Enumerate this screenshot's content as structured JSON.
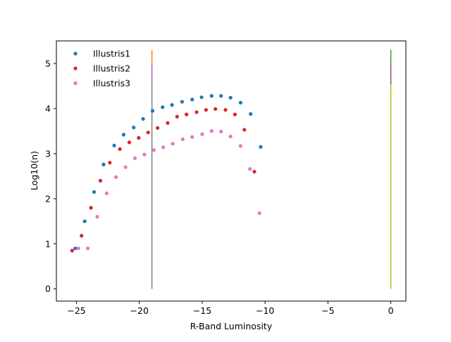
{
  "chart_data": {
    "type": "scatter",
    "title": "",
    "xlabel": "R-Band Luminosity",
    "ylabel": "Log10(n)",
    "xlim": [
      -26.6,
      1.2
    ],
    "ylim": [
      -0.27,
      5.5
    ],
    "xticks": [
      -25,
      -20,
      -15,
      -10,
      -5,
      0
    ],
    "xtick_labels": [
      "−25",
      "−20",
      "−15",
      "−10",
      "−5",
      "0"
    ],
    "yticks": [
      0,
      1,
      2,
      3,
      4,
      5
    ],
    "ytick_labels": [
      "0",
      "1",
      "2",
      "3",
      "4",
      "5"
    ],
    "grid": false,
    "legend_position": "top-left",
    "series": [
      {
        "name": "Illustris1",
        "color": "#1f77b4",
        "points": [
          [
            -25.1,
            0.9
          ],
          [
            -24.35,
            1.5
          ],
          [
            -23.6,
            2.15
          ],
          [
            -22.85,
            2.76
          ],
          [
            -22.0,
            3.18
          ],
          [
            -21.25,
            3.42
          ],
          [
            -20.45,
            3.58
          ],
          [
            -19.7,
            3.77
          ],
          [
            -18.95,
            3.95
          ],
          [
            -18.15,
            4.03
          ],
          [
            -17.4,
            4.08
          ],
          [
            -16.6,
            4.15
          ],
          [
            -15.8,
            4.2
          ],
          [
            -15.05,
            4.25
          ],
          [
            -14.25,
            4.28
          ],
          [
            -13.5,
            4.28
          ],
          [
            -12.75,
            4.24
          ],
          [
            -11.95,
            4.13
          ],
          [
            -11.15,
            3.88
          ],
          [
            -10.35,
            3.15
          ]
        ]
      },
      {
        "name": "Illustris2",
        "color": "#d62728",
        "points": [
          [
            -25.35,
            0.85
          ],
          [
            -24.6,
            1.18
          ],
          [
            -23.85,
            1.8
          ],
          [
            -23.1,
            2.4
          ],
          [
            -22.35,
            2.8
          ],
          [
            -21.55,
            3.1
          ],
          [
            -20.8,
            3.25
          ],
          [
            -20.05,
            3.35
          ],
          [
            -19.3,
            3.47
          ],
          [
            -18.55,
            3.57
          ],
          [
            -17.75,
            3.68
          ],
          [
            -17.0,
            3.82
          ],
          [
            -16.25,
            3.87
          ],
          [
            -15.45,
            3.92
          ],
          [
            -14.7,
            3.97
          ],
          [
            -13.95,
            3.99
          ],
          [
            -13.15,
            3.97
          ],
          [
            -12.4,
            3.87
          ],
          [
            -11.65,
            3.53
          ],
          [
            -10.85,
            2.6
          ]
        ]
      },
      {
        "name": "Illustris3",
        "color": "#e377c2",
        "points": [
          [
            -24.85,
            0.9
          ],
          [
            -24.1,
            0.9
          ],
          [
            -23.35,
            1.6
          ],
          [
            -22.6,
            2.12
          ],
          [
            -21.85,
            2.48
          ],
          [
            -21.1,
            2.7
          ],
          [
            -20.35,
            2.9
          ],
          [
            -19.6,
            2.98
          ],
          [
            -18.85,
            3.08
          ],
          [
            -18.1,
            3.14
          ],
          [
            -17.35,
            3.22
          ],
          [
            -16.55,
            3.32
          ],
          [
            -15.8,
            3.37
          ],
          [
            -15.0,
            3.43
          ],
          [
            -14.25,
            3.5
          ],
          [
            -13.5,
            3.49
          ],
          [
            -12.75,
            3.38
          ],
          [
            -11.95,
            3.17
          ],
          [
            -11.2,
            2.66
          ],
          [
            -10.45,
            1.68
          ]
        ]
      }
    ],
    "vertical_lines": [
      {
        "x": -19.0,
        "y": [
          4.97,
          5.3
        ],
        "color": "#ff7f0e"
      },
      {
        "x": -19.0,
        "y": [
          4.53,
          4.97
        ],
        "color": "#9467bd"
      },
      {
        "x": -19.0,
        "y": [
          0.0,
          4.53
        ],
        "color": "#7f7f7f"
      },
      {
        "x": 0.0,
        "y": [
          4.97,
          5.3
        ],
        "color": "#2ca02c"
      },
      {
        "x": 0.0,
        "y": [
          4.53,
          4.97
        ],
        "color": "#8c564b"
      },
      {
        "x": 0.0,
        "y": [
          0.0,
          4.53
        ],
        "color": "#bcbd22"
      }
    ]
  }
}
